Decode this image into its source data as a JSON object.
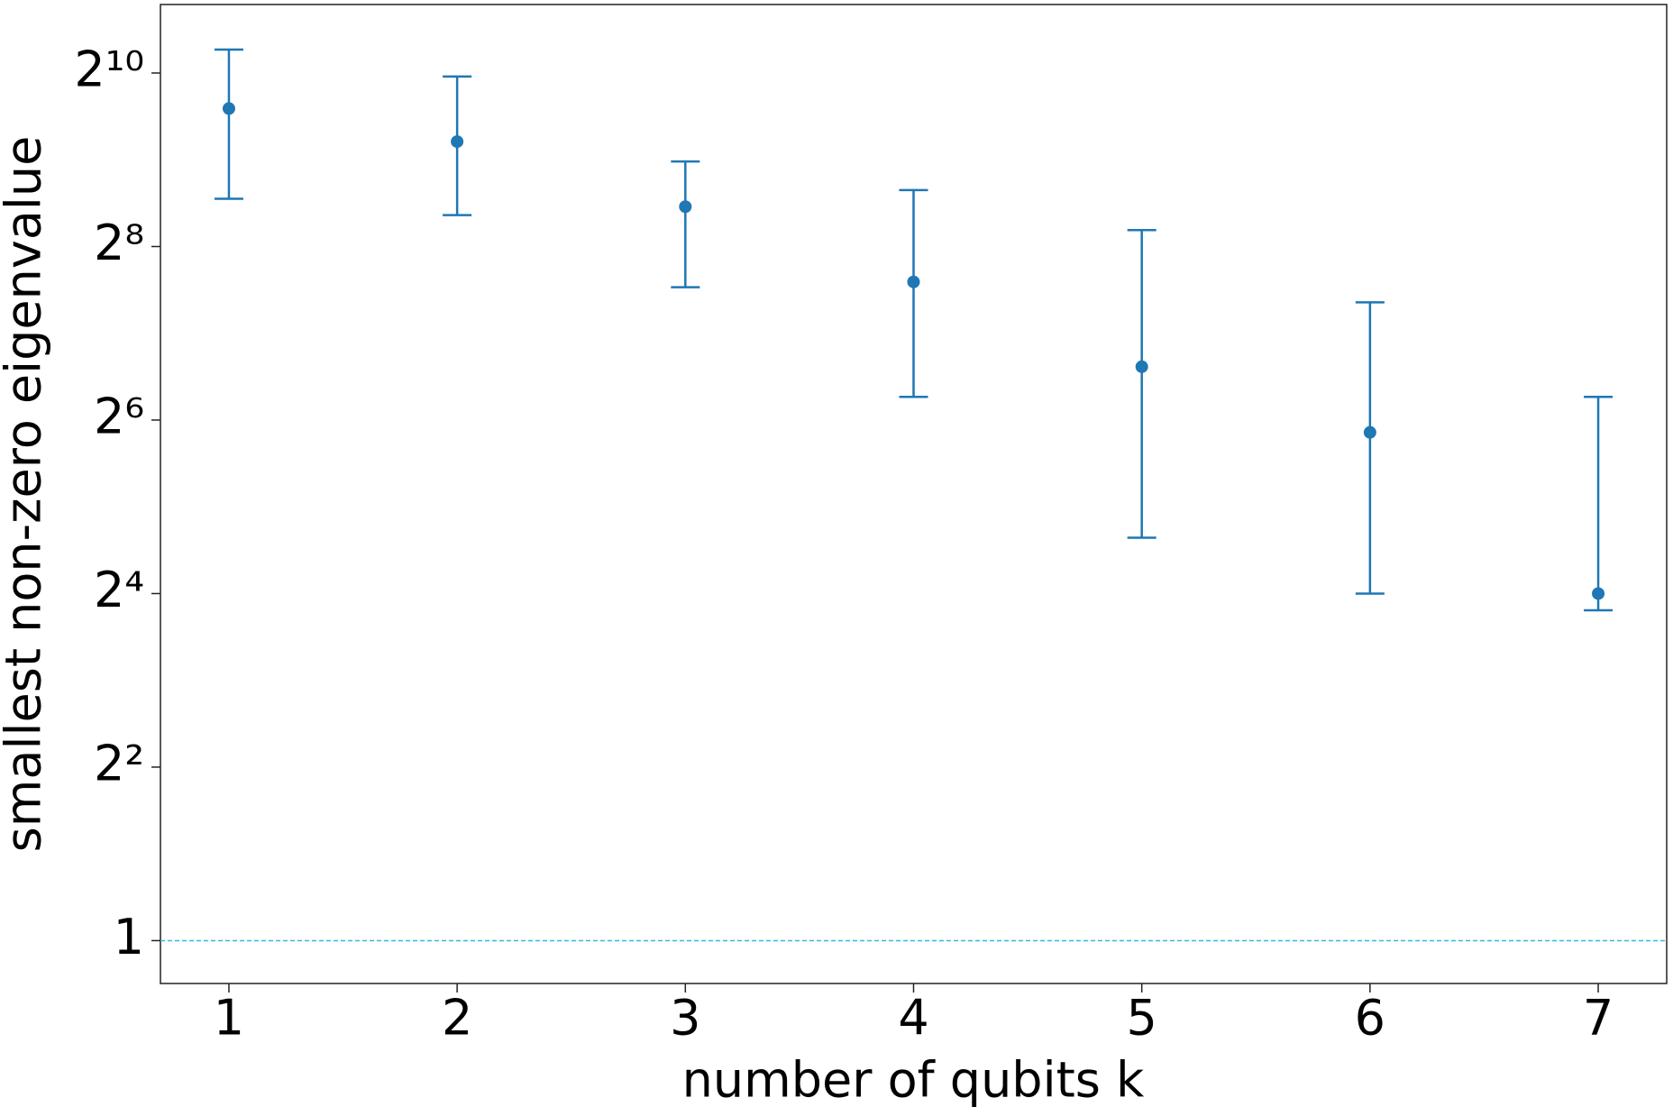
{
  "chart_data": {
    "type": "errorbar",
    "xlabel": "number of qubits k",
    "ylabel": "smallest non-zero eigenvalue",
    "x": [
      1,
      2,
      3,
      4,
      5,
      6,
      7
    ],
    "series": [
      {
        "color": "#1f77b4",
        "values": [
          771,
          592,
          352,
          193,
          98,
          58,
          16
        ],
        "lower": [
          375,
          329,
          185,
          77,
          25,
          16,
          14
        ],
        "upper": [
          1235,
          996,
          505,
          402,
          292,
          164,
          77
        ]
      }
    ],
    "hline": {
      "value": 1,
      "color": "#35b8e8"
    },
    "xlim": [
      0.7,
      7.3
    ],
    "xticks": [
      1,
      2,
      3,
      4,
      5,
      6,
      7
    ],
    "ylim": [
      0.71,
      1770
    ],
    "yscale": "log2",
    "yticks": [
      1,
      {
        "value": 4,
        "label": "2²"
      },
      {
        "value": 16,
        "label": "2⁴"
      },
      {
        "value": 64,
        "label": "2⁶"
      },
      {
        "value": 256,
        "label": "2⁸"
      },
      {
        "value": 1024,
        "label": "2¹⁰"
      }
    ]
  }
}
